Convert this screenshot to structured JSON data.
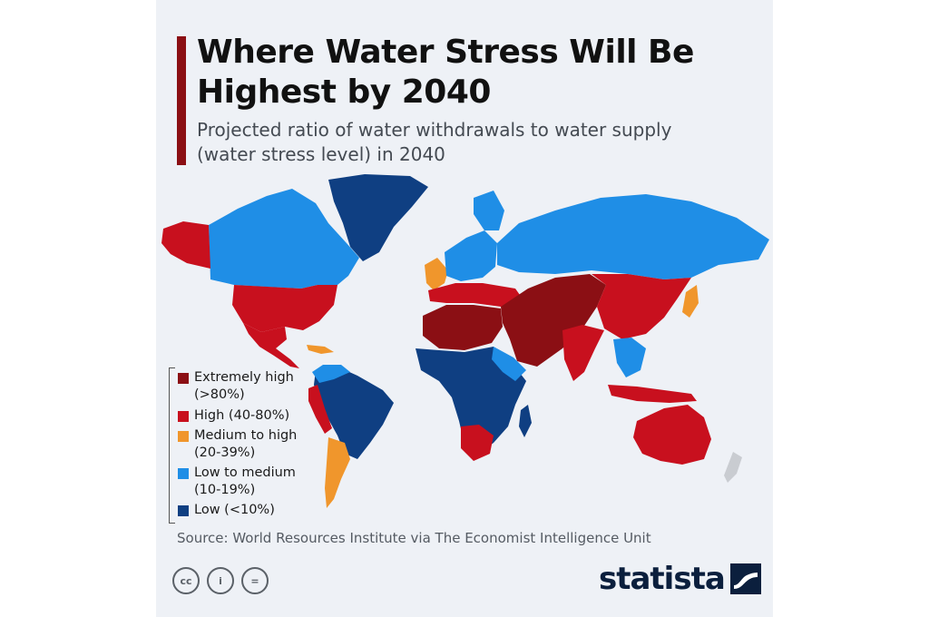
{
  "header": {
    "title": "Where Water Stress Will Be Highest by 2040",
    "subtitle": "Projected ratio of water withdrawals to water supply (water stress level) in 2040"
  },
  "colors": {
    "extremely_high": "#8b0f14",
    "high": "#c8101e",
    "medium_high": "#f0962c",
    "low_medium": "#1f8ee6",
    "low": "#0f3f82",
    "background": "#eef1f6",
    "no_data": "#c9ccd1"
  },
  "legend": {
    "items": [
      {
        "label": "Extremely high\n(>80%)",
        "color": "#8b0f14"
      },
      {
        "label": "High (40-80%)",
        "color": "#c8101e"
      },
      {
        "label": "Medium to high\n(20-39%)",
        "color": "#f0962c"
      },
      {
        "label": "Low to medium\n(10-19%)",
        "color": "#1f8ee6"
      },
      {
        "label": "Low (<10%)",
        "color": "#0f3f82"
      }
    ]
  },
  "footer": {
    "source": "Source: World Resources Institute via The Economist Intelligence Unit",
    "cc_icons": [
      "creative-commons-icon",
      "attribution-icon",
      "no-derivatives-icon"
    ],
    "cc_labels": [
      "cc",
      "i",
      "="
    ],
    "brand": "statista"
  }
}
